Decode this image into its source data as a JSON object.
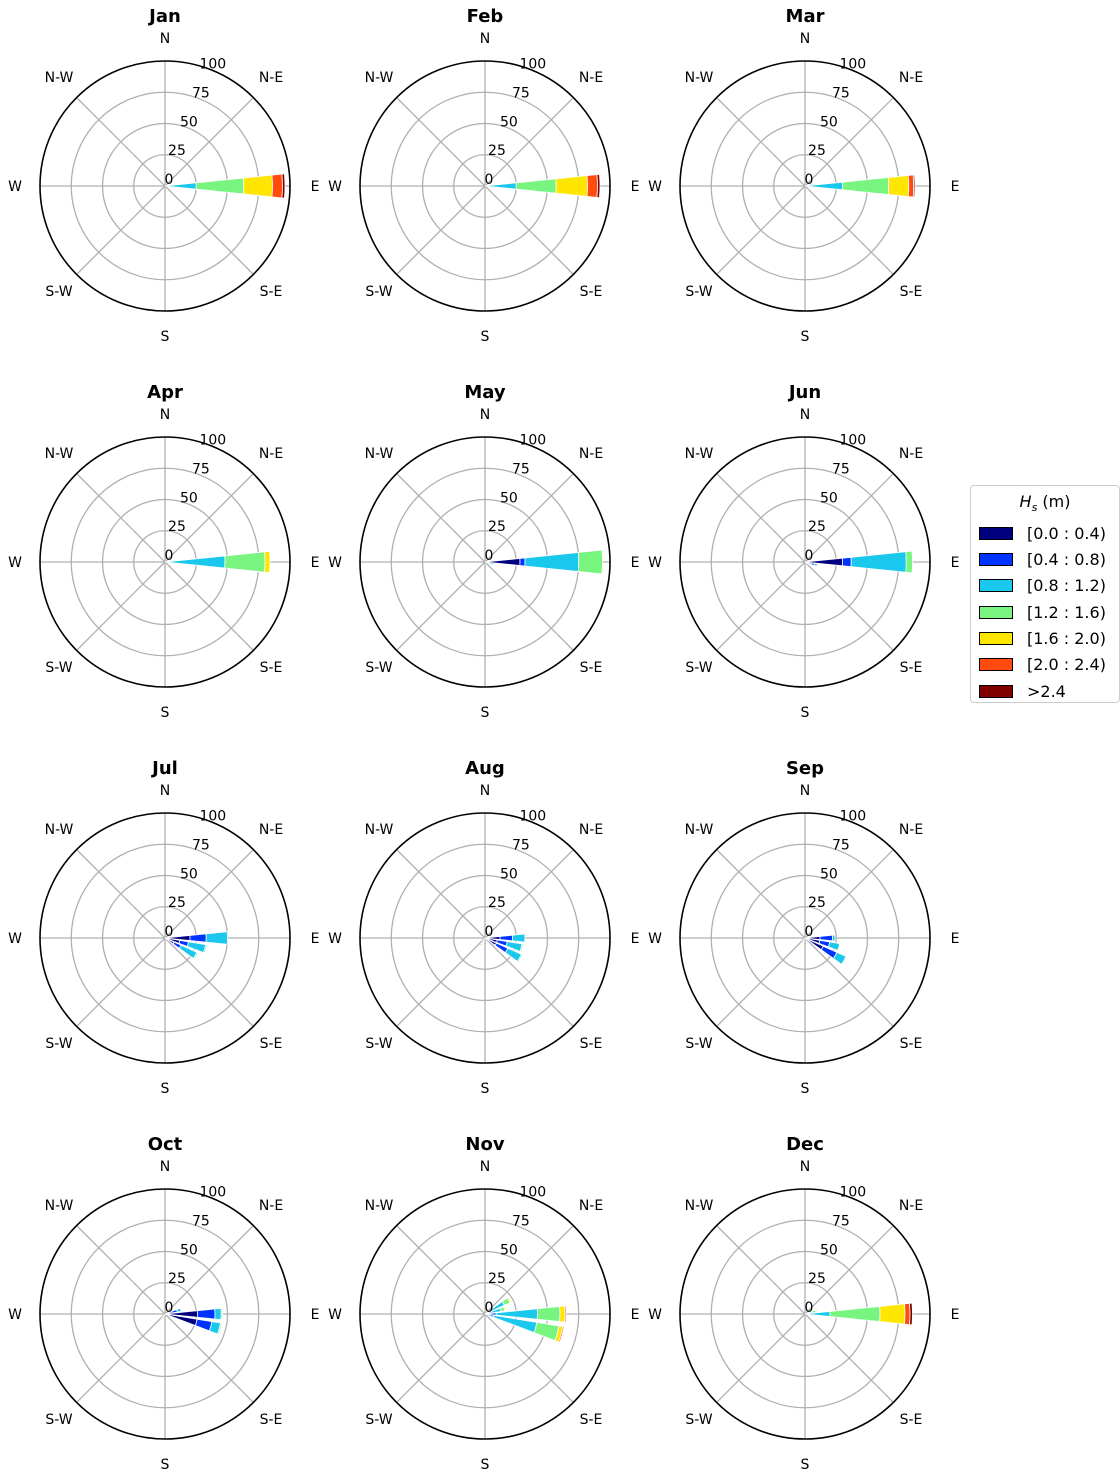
{
  "figure": {
    "directions": [
      "N",
      "N-E",
      "E",
      "S-E",
      "S",
      "S-W",
      "W",
      "N-W"
    ],
    "radial_ticks": [
      "0",
      "25",
      "50",
      "75",
      "100"
    ]
  },
  "legend": {
    "title_symbol": "H",
    "title_subscript": "s",
    "title_unit": "(m)",
    "bins": [
      {
        "label": "[0.0 : 0.4)",
        "color": "#00007f"
      },
      {
        "label": "[0.4 : 0.8)",
        "color": "#0033ff"
      },
      {
        "label": "[0.8 : 1.2)",
        "color": "#1ac8ee"
      },
      {
        "label": "[1.2 : 1.6)",
        "color": "#77f57f"
      },
      {
        "label": "[1.6 : 2.0)",
        "color": "#ffe600"
      },
      {
        "label": "[2.0 : 2.4)",
        "color": "#ff4b0e"
      },
      {
        "label": ">2.4",
        "color": "#800000"
      }
    ]
  },
  "chart_data": [
    {
      "type": "polar-bar",
      "title": "Jan",
      "rlim": [
        0,
        100
      ],
      "grid": true,
      "sectors": [
        {
          "direction": 90,
          "cumulative": [
            1,
            3,
            25,
            63,
            86,
            94,
            96
          ]
        },
        {
          "direction": 75,
          "cumulative": [
            0,
            1,
            2,
            3,
            3,
            3,
            3
          ]
        }
      ]
    },
    {
      "type": "polar-bar",
      "title": "Feb",
      "rlim": [
        0,
        100
      ],
      "grid": true,
      "sectors": [
        {
          "direction": 90,
          "cumulative": [
            1,
            3,
            25,
            57,
            82,
            90,
            92
          ]
        },
        {
          "direction": 75,
          "cumulative": [
            0,
            1,
            3,
            4,
            5,
            5,
            5
          ]
        }
      ]
    },
    {
      "type": "polar-bar",
      "title": "Mar",
      "rlim": [
        0,
        100
      ],
      "grid": true,
      "sectors": [
        {
          "direction": 90,
          "cumulative": [
            2,
            5,
            30,
            67,
            83,
            87,
            88
          ]
        },
        {
          "direction": 75,
          "cumulative": [
            1,
            3,
            5,
            7,
            7,
            7,
            7
          ]
        }
      ]
    },
    {
      "type": "polar-bar",
      "title": "Apr",
      "rlim": [
        0,
        100
      ],
      "grid": true,
      "sectors": [
        {
          "direction": 90,
          "cumulative": [
            2,
            5,
            48,
            80,
            84,
            84,
            84
          ]
        },
        {
          "direction": 75,
          "cumulative": [
            1,
            2,
            4,
            5,
            5,
            5,
            5
          ]
        }
      ]
    },
    {
      "type": "polar-bar",
      "title": "May",
      "rlim": [
        0,
        100
      ],
      "grid": true,
      "sectors": [
        {
          "direction": 90,
          "cumulative": [
            28,
            32,
            75,
            94,
            94,
            94,
            94
          ]
        },
        {
          "direction": 105,
          "cumulative": [
            2,
            5,
            7,
            7,
            7,
            7,
            7
          ]
        }
      ]
    },
    {
      "type": "polar-bar",
      "title": "Jun",
      "rlim": [
        0,
        100
      ],
      "grid": true,
      "sectors": [
        {
          "direction": 90,
          "cumulative": [
            30,
            37,
            81,
            86,
            86,
            86,
            86
          ]
        },
        {
          "direction": 105,
          "cumulative": [
            5,
            8,
            10,
            10,
            10,
            10,
            10
          ]
        },
        {
          "direction": 120,
          "cumulative": [
            1,
            2,
            3,
            3,
            3,
            3,
            3
          ]
        }
      ]
    },
    {
      "type": "polar-bar",
      "title": "Jul",
      "rlim": [
        0,
        100
      ],
      "grid": true,
      "sectors": [
        {
          "direction": 90,
          "cumulative": [
            20,
            33,
            50,
            50,
            50,
            50,
            50
          ]
        },
        {
          "direction": 105,
          "cumulative": [
            12,
            19,
            33,
            34,
            34,
            34,
            34
          ]
        },
        {
          "direction": 120,
          "cumulative": [
            8,
            14,
            28,
            29,
            29,
            29,
            29
          ]
        }
      ]
    },
    {
      "type": "polar-bar",
      "title": "Aug",
      "rlim": [
        0,
        100
      ],
      "grid": true,
      "sectors": [
        {
          "direction": 90,
          "cumulative": [
            12,
            22,
            32,
            32,
            32,
            32,
            32
          ]
        },
        {
          "direction": 105,
          "cumulative": [
            10,
            18,
            30,
            31,
            31,
            31,
            31
          ]
        },
        {
          "direction": 120,
          "cumulative": [
            10,
            20,
            32,
            33,
            33,
            33,
            33
          ]
        },
        {
          "direction": 210,
          "cumulative": [
            1,
            3,
            5,
            7,
            7,
            7,
            7
          ]
        }
      ]
    },
    {
      "type": "polar-bar",
      "title": "Sep",
      "rlim": [
        0,
        100
      ],
      "grid": true,
      "sectors": [
        {
          "direction": 90,
          "cumulative": [
            12,
            22,
            24,
            24,
            24,
            24,
            24
          ]
        },
        {
          "direction": 105,
          "cumulative": [
            12,
            20,
            28,
            28,
            28,
            28,
            28
          ]
        },
        {
          "direction": 120,
          "cumulative": [
            16,
            28,
            36,
            36,
            36,
            36,
            36
          ]
        },
        {
          "direction": 210,
          "cumulative": [
            1,
            3,
            5,
            6,
            6,
            6,
            6
          ]
        }
      ]
    },
    {
      "type": "polar-bar",
      "title": "Oct",
      "rlim": [
        0,
        100
      ],
      "grid": true,
      "sectors": [
        {
          "direction": 75,
          "cumulative": [
            5,
            10,
            13,
            13,
            13,
            13,
            13
          ]
        },
        {
          "direction": 90,
          "cumulative": [
            26,
            40,
            45,
            46,
            46,
            46,
            46
          ]
        },
        {
          "direction": 105,
          "cumulative": [
            26,
            38,
            45,
            46,
            46,
            46,
            46
          ]
        },
        {
          "direction": 210,
          "cumulative": [
            1,
            2,
            4,
            5,
            5,
            5,
            5
          ]
        }
      ]
    },
    {
      "type": "polar-bar",
      "title": "Nov",
      "rlim": [
        0,
        100
      ],
      "grid": true,
      "sectors": [
        {
          "direction": 60,
          "cumulative": [
            2,
            5,
            17,
            22,
            23,
            23,
            23
          ]
        },
        {
          "direction": 75,
          "cumulative": [
            2,
            5,
            13,
            16,
            17,
            17,
            17
          ]
        },
        {
          "direction": 90,
          "cumulative": [
            4,
            9,
            42,
            60,
            64,
            65,
            65
          ]
        },
        {
          "direction": 105,
          "cumulative": [
            3,
            7,
            42,
            60,
            63,
            64,
            64
          ]
        }
      ]
    },
    {
      "type": "polar-bar",
      "title": "Dec",
      "rlim": [
        0,
        100
      ],
      "grid": true,
      "sectors": [
        {
          "direction": 90,
          "cumulative": [
            1,
            2,
            20,
            60,
            80,
            84,
            86
          ]
        },
        {
          "direction": 75,
          "cumulative": [
            1,
            3,
            5,
            9,
            10,
            10,
            10
          ]
        }
      ]
    }
  ]
}
